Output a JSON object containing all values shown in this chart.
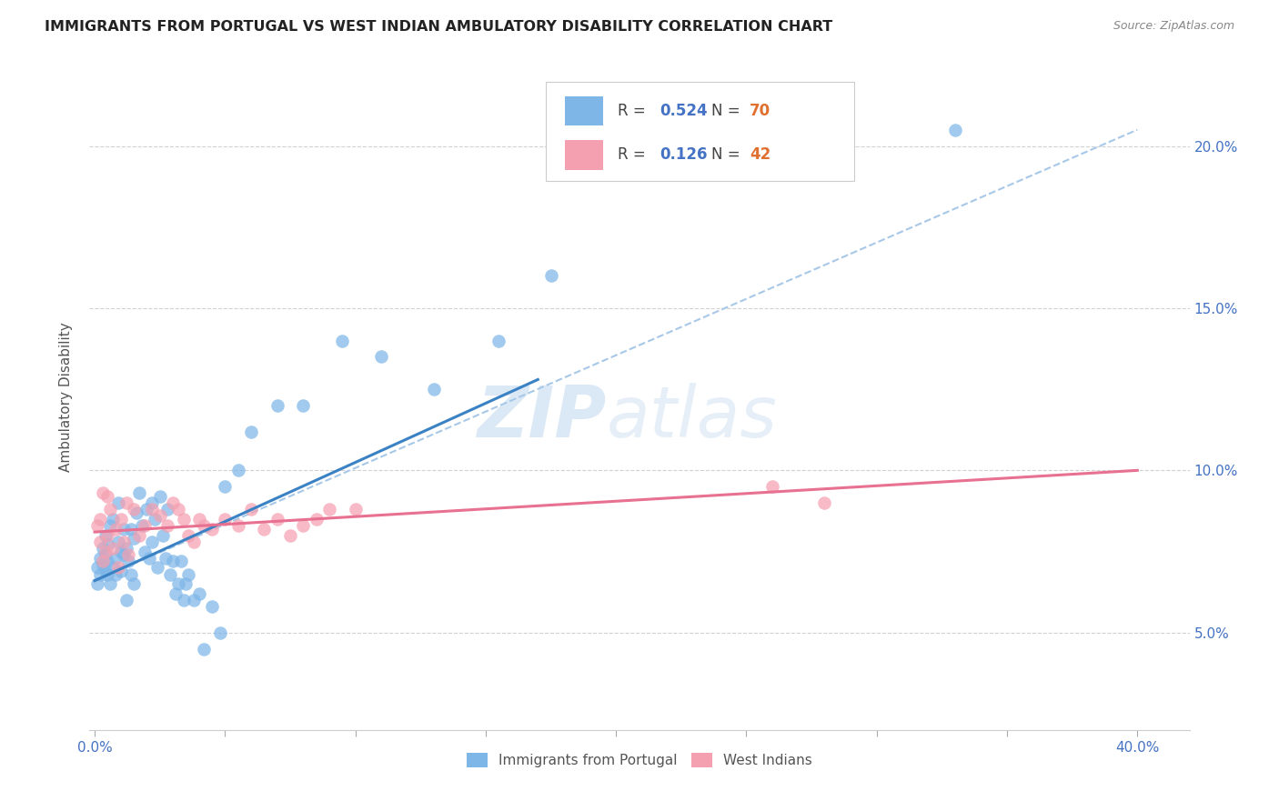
{
  "title": "IMMIGRANTS FROM PORTUGAL VS WEST INDIAN AMBULATORY DISABILITY CORRELATION CHART",
  "source": "Source: ZipAtlas.com",
  "xlabel_ticks": [
    "0.0%",
    "",
    "",
    "",
    "",
    "",
    "",
    "",
    "40.0%"
  ],
  "xlabel_vals": [
    0.0,
    0.05,
    0.1,
    0.15,
    0.2,
    0.25,
    0.3,
    0.35,
    0.4
  ],
  "ylabel": "Ambulatory Disability",
  "ylabel_ticks": [
    "5.0%",
    "10.0%",
    "15.0%",
    "20.0%"
  ],
  "ylabel_vals": [
    0.05,
    0.1,
    0.15,
    0.2
  ],
  "xlim": [
    -0.002,
    0.42
  ],
  "ylim": [
    0.02,
    0.225
  ],
  "R_blue": "0.524",
  "N_blue": "70",
  "R_pink": "0.126",
  "N_pink": "42",
  "legend_label_blue": "Immigrants from Portugal",
  "legend_label_pink": "West Indians",
  "blue_color": "#7EB6E8",
  "pink_color": "#F4A0B0",
  "blue_line_color": "#3B82C4",
  "pink_line_color": "#E87090",
  "dashed_line_color": "#A8C8E8",
  "watermark_zip": "ZIP",
  "watermark_atlas": "atlas",
  "blue_scatter_x": [
    0.001,
    0.001,
    0.002,
    0.002,
    0.003,
    0.003,
    0.004,
    0.004,
    0.004,
    0.005,
    0.005,
    0.005,
    0.006,
    0.006,
    0.007,
    0.007,
    0.008,
    0.008,
    0.009,
    0.009,
    0.01,
    0.01,
    0.011,
    0.011,
    0.012,
    0.012,
    0.013,
    0.014,
    0.014,
    0.015,
    0.015,
    0.016,
    0.017,
    0.018,
    0.019,
    0.02,
    0.021,
    0.022,
    0.022,
    0.023,
    0.024,
    0.025,
    0.026,
    0.027,
    0.028,
    0.029,
    0.03,
    0.031,
    0.032,
    0.033,
    0.034,
    0.035,
    0.036,
    0.038,
    0.04,
    0.042,
    0.045,
    0.048,
    0.05,
    0.055,
    0.06,
    0.07,
    0.08,
    0.095,
    0.11,
    0.13,
    0.155,
    0.175,
    0.21,
    0.33
  ],
  "blue_scatter_y": [
    0.07,
    0.065,
    0.068,
    0.073,
    0.071,
    0.076,
    0.069,
    0.074,
    0.08,
    0.072,
    0.068,
    0.077,
    0.065,
    0.083,
    0.07,
    0.085,
    0.073,
    0.068,
    0.078,
    0.09,
    0.075,
    0.069,
    0.082,
    0.074,
    0.076,
    0.06,
    0.072,
    0.082,
    0.068,
    0.079,
    0.065,
    0.087,
    0.093,
    0.083,
    0.075,
    0.088,
    0.073,
    0.09,
    0.078,
    0.085,
    0.07,
    0.092,
    0.08,
    0.073,
    0.088,
    0.068,
    0.072,
    0.062,
    0.065,
    0.072,
    0.06,
    0.065,
    0.068,
    0.06,
    0.062,
    0.045,
    0.058,
    0.05,
    0.095,
    0.1,
    0.112,
    0.12,
    0.12,
    0.14,
    0.135,
    0.125,
    0.14,
    0.16,
    0.215,
    0.205
  ],
  "pink_scatter_x": [
    0.001,
    0.002,
    0.002,
    0.003,
    0.003,
    0.004,
    0.005,
    0.005,
    0.006,
    0.007,
    0.008,
    0.009,
    0.01,
    0.011,
    0.012,
    0.013,
    0.015,
    0.017,
    0.019,
    0.022,
    0.025,
    0.028,
    0.03,
    0.032,
    0.034,
    0.036,
    0.038,
    0.04,
    0.042,
    0.045,
    0.05,
    0.055,
    0.06,
    0.065,
    0.07,
    0.075,
    0.08,
    0.085,
    0.09,
    0.1,
    0.26,
    0.28
  ],
  "pink_scatter_y": [
    0.083,
    0.078,
    0.085,
    0.072,
    0.093,
    0.075,
    0.08,
    0.092,
    0.088,
    0.076,
    0.082,
    0.07,
    0.085,
    0.078,
    0.09,
    0.074,
    0.088,
    0.08,
    0.083,
    0.088,
    0.086,
    0.083,
    0.09,
    0.088,
    0.085,
    0.08,
    0.078,
    0.085,
    0.083,
    0.082,
    0.085,
    0.083,
    0.088,
    0.082,
    0.085,
    0.08,
    0.083,
    0.085,
    0.088,
    0.088,
    0.095,
    0.09
  ],
  "blue_line_x": [
    0.0,
    0.17
  ],
  "blue_line_y": [
    0.066,
    0.128
  ],
  "pink_line_x": [
    0.0,
    0.4
  ],
  "pink_line_y": [
    0.081,
    0.1
  ],
  "dashed_line_x": [
    0.0,
    0.4
  ],
  "dashed_line_y": [
    0.066,
    0.205
  ]
}
